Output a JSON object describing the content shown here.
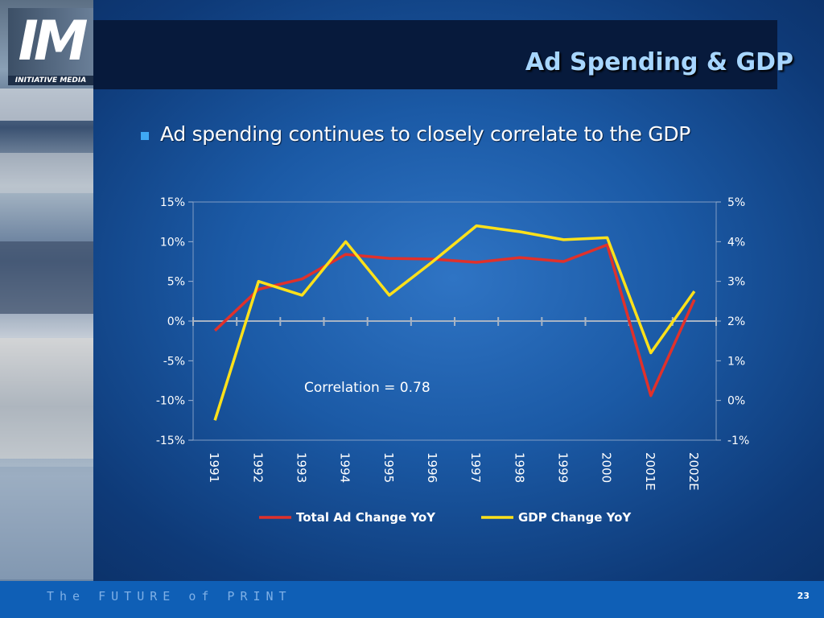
{
  "slide": {
    "title": "Ad Spending & GDP",
    "bullet": "Ad spending continues to closely correlate to the GDP",
    "footer": "The FUTURE of PRINT",
    "page_number": "23",
    "logo_text": "IM",
    "logo_subtitle": "INITIATIVE MEDIA"
  },
  "chart_data": {
    "type": "line",
    "title": "",
    "categories": [
      "1991",
      "1992",
      "1993",
      "1994",
      "1995",
      "1996",
      "1997",
      "1998",
      "1999",
      "2000",
      "2001E",
      "2002E"
    ],
    "y_left": {
      "ticks": [
        -15,
        -10,
        -5,
        0,
        5,
        10,
        15
      ],
      "tick_labels": [
        "-15%",
        "-10%",
        "-5%",
        "0%",
        "5%",
        "10%",
        "15%"
      ],
      "ylim": [
        -15,
        15
      ]
    },
    "y_right": {
      "ticks": [
        -1,
        0,
        1,
        2,
        3,
        4,
        5
      ],
      "tick_labels": [
        "-1%",
        "0%",
        "1%",
        "2%",
        "3%",
        "4%",
        "5%"
      ],
      "ylim": [
        -1,
        5
      ]
    },
    "series": [
      {
        "name": "Total Ad Change YoY",
        "axis": "left",
        "color": "#e0312b",
        "values": [
          -1.2,
          4.0,
          5.3,
          8.4,
          7.9,
          7.8,
          7.4,
          8.0,
          7.5,
          9.6,
          -9.4,
          2.7
        ]
      },
      {
        "name": "GDP Change YoY",
        "axis": "right",
        "color": "#ffe11a",
        "values": [
          -0.5,
          3.0,
          2.65,
          4.0,
          2.65,
          3.5,
          4.4,
          4.25,
          4.05,
          4.1,
          1.2,
          2.75
        ]
      }
    ],
    "annotation": "Correlation = 0.78",
    "legend_position": "bottom",
    "grid": false
  }
}
